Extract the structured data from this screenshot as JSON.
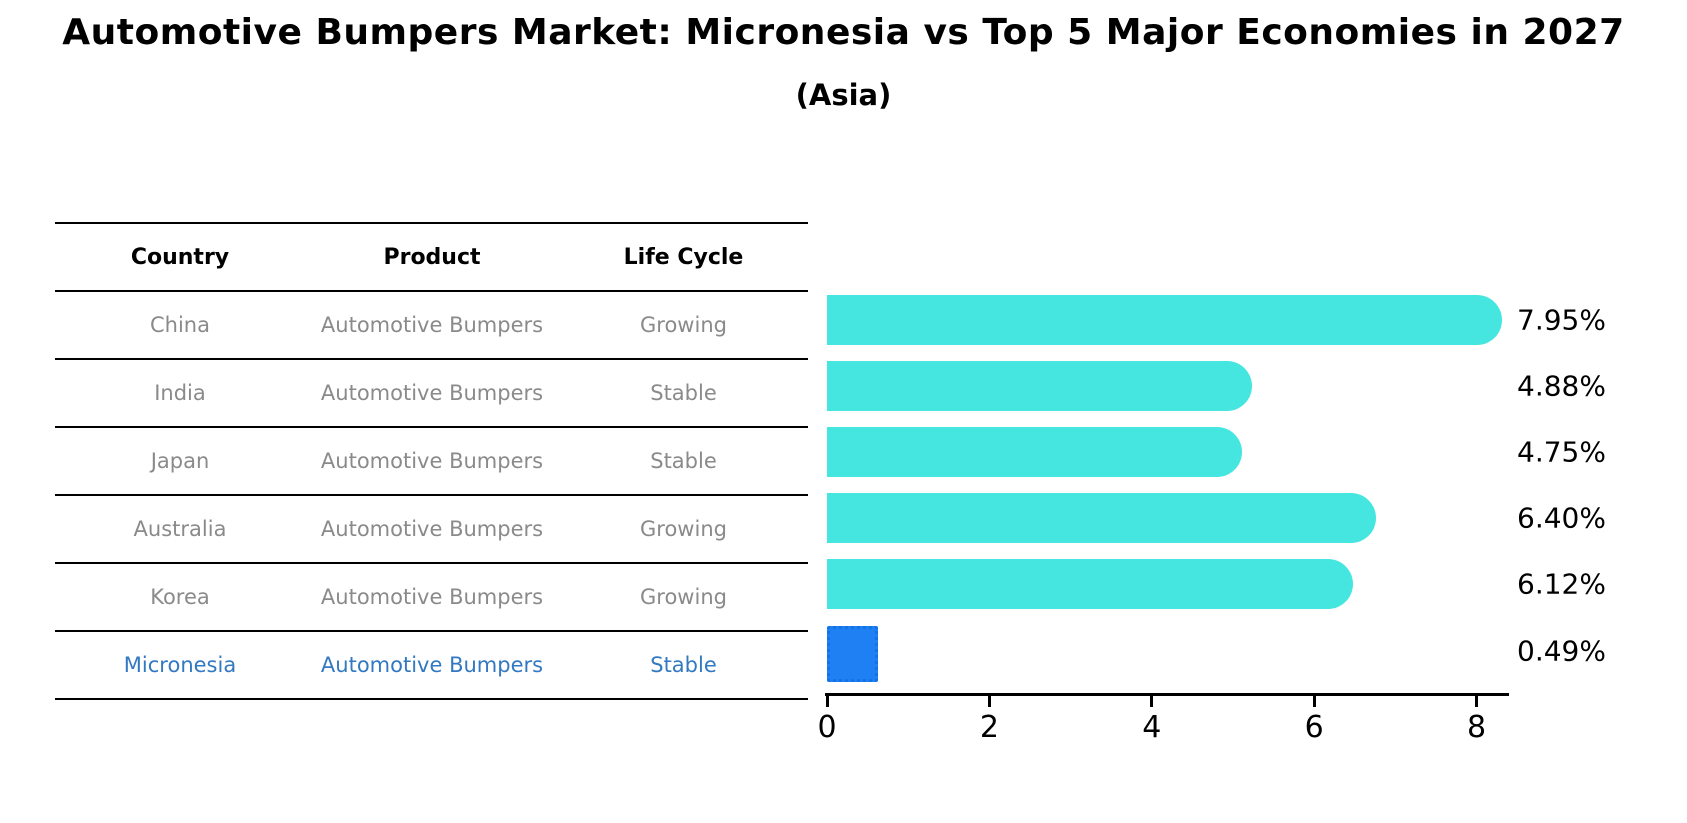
{
  "title": "Automotive Bumpers Market: Micronesia vs Top 5 Major Economies in 2027",
  "subtitle": "(Asia)",
  "table": {
    "columns": [
      "Country",
      "Product",
      "Life Cycle"
    ],
    "rows": [
      {
        "country": "China",
        "product": "Automotive Bumpers",
        "life_cycle": "Growing",
        "highlight": false
      },
      {
        "country": "India",
        "product": "Automotive Bumpers",
        "life_cycle": "Stable",
        "highlight": false
      },
      {
        "country": "Japan",
        "product": "Automotive Bumpers",
        "life_cycle": "Stable",
        "highlight": false
      },
      {
        "country": "Australia",
        "product": "Automotive Bumpers",
        "life_cycle": "Growing",
        "highlight": false
      },
      {
        "country": "Korea",
        "product": "Automotive Bumpers",
        "life_cycle": "Growing",
        "highlight": false
      },
      {
        "country": "Micronesia",
        "product": "Automotive Bumpers",
        "life_cycle": "Stable",
        "highlight": true
      }
    ]
  },
  "chart_data": {
    "type": "bar",
    "orientation": "horizontal",
    "title": "Automotive Bumpers Market: Micronesia vs Top 5 Major Economies in 2027 (Asia)",
    "categories": [
      "China",
      "India",
      "Japan",
      "Australia",
      "Korea",
      "Micronesia"
    ],
    "values": [
      7.95,
      4.88,
      4.75,
      6.4,
      6.12,
      0.49
    ],
    "value_labels": [
      "7.95%",
      "4.88%",
      "4.75%",
      "6.40%",
      "6.12%",
      "0.49%"
    ],
    "unit": "percent",
    "x_tick_labels": [
      "0",
      "2",
      "4",
      "6",
      "8"
    ],
    "x_tick_values": [
      0,
      2,
      4,
      6,
      8
    ],
    "xlim": [
      0,
      8.4
    ],
    "grid": false,
    "legend": false,
    "highlight_index": 5
  },
  "colors": {
    "background": "#ffffff",
    "bar": "#45e6e0",
    "highlight_bar": "#1e80f2",
    "highlight_border": "#1272e8",
    "highlight_text": "#3279c2",
    "table_text": "#8a8a8a",
    "header_text": "#000000",
    "axis": "#000000"
  }
}
